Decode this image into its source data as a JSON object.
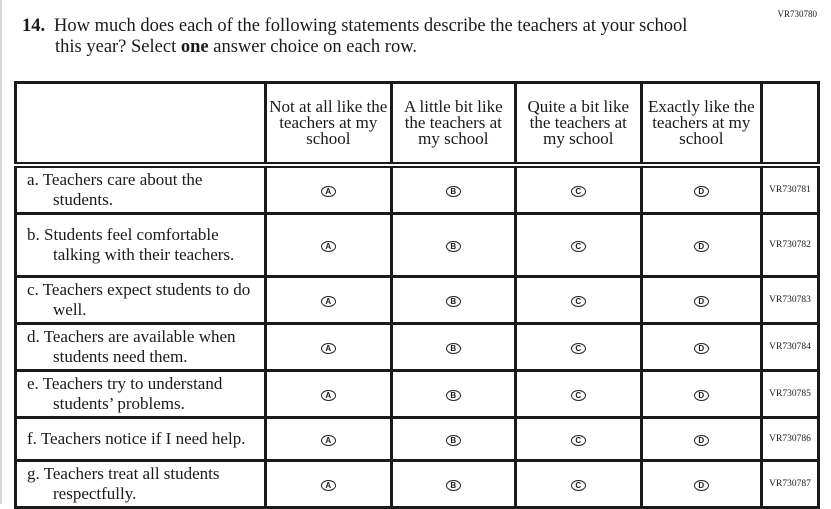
{
  "page_code": "VR730780",
  "question": {
    "number": "14.",
    "line1": "How much does each of the following statements describe the teachers at your school",
    "line2_pre": "this year? Select ",
    "line2_bold": "one",
    "line2_post": " answer choice on each row."
  },
  "columns": [
    "Not at all like the teachers at my school",
    "A little bit like the teachers at my school",
    "Quite a bit like the teachers at my school",
    "Exactly like the teachers at my school"
  ],
  "bubbles": [
    "A",
    "B",
    "C",
    "D"
  ],
  "rows": [
    {
      "text": "a. Teachers care about the students.",
      "code": "VR730781"
    },
    {
      "text": "b. Students feel comfortable talking with their teachers.",
      "code": "VR730782"
    },
    {
      "text": "c. Teachers expect students to do well.",
      "code": "VR730783"
    },
    {
      "text": "d. Teachers are available when students need them.",
      "code": "VR730784"
    },
    {
      "text": "e. Teachers try to understand students’ problems.",
      "code": "VR730785"
    },
    {
      "text": "f. Teachers notice if I need help.",
      "code": "VR730786"
    },
    {
      "text": "g. Teachers treat all students respectfully.",
      "code": "VR730787"
    }
  ]
}
